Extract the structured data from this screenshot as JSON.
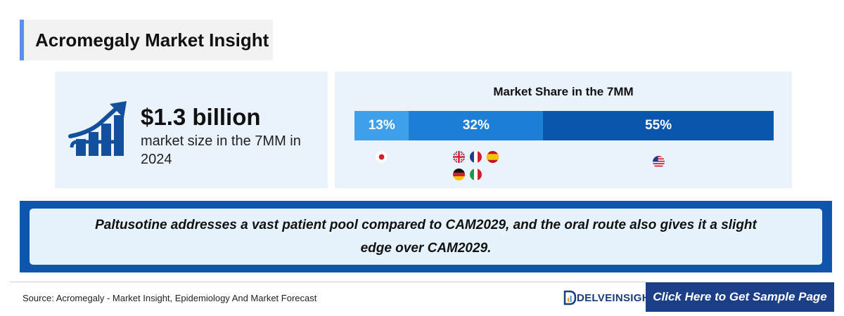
{
  "header": {
    "title": "Acromegaly Market Insight"
  },
  "market_size": {
    "value": "$1.3 billion",
    "description": "market size in the 7MM in 2024"
  },
  "chart_data": {
    "type": "bar",
    "title": "Market Share in the 7MM",
    "stacked": true,
    "orientation": "horizontal",
    "categories": [
      "Japan",
      "EU4 and the UK",
      "United States"
    ],
    "values": [
      13,
      32,
      55
    ],
    "labels": [
      "13%",
      "32%",
      "55%"
    ],
    "colors": [
      "#3fa0ea",
      "#1e7fd6",
      "#0a56ad"
    ],
    "flags": [
      [
        "japan-flag-icon"
      ],
      [
        "uk-flag-icon",
        "france-flag-icon",
        "spain-flag-icon",
        "germany-flag-icon",
        "italy-flag-icon"
      ],
      [
        "us-flag-icon"
      ]
    ]
  },
  "banner": {
    "text": "Paltusotine addresses a vast patient pool compared to CAM2029, and the oral route also gives it a slight edge over CAM2029."
  },
  "footer": {
    "source": "Source: Acromegaly - Market Insight, Epidemiology And Market Forecast",
    "logo_text": "DELVEINSIGHT",
    "cta_label": "Click Here to Get Sample Page"
  },
  "colors": {
    "accent": "#5b8ff0",
    "banner": "#0e56ad",
    "cta": "#1b3f86",
    "card_bg": "#eaf2fb"
  }
}
